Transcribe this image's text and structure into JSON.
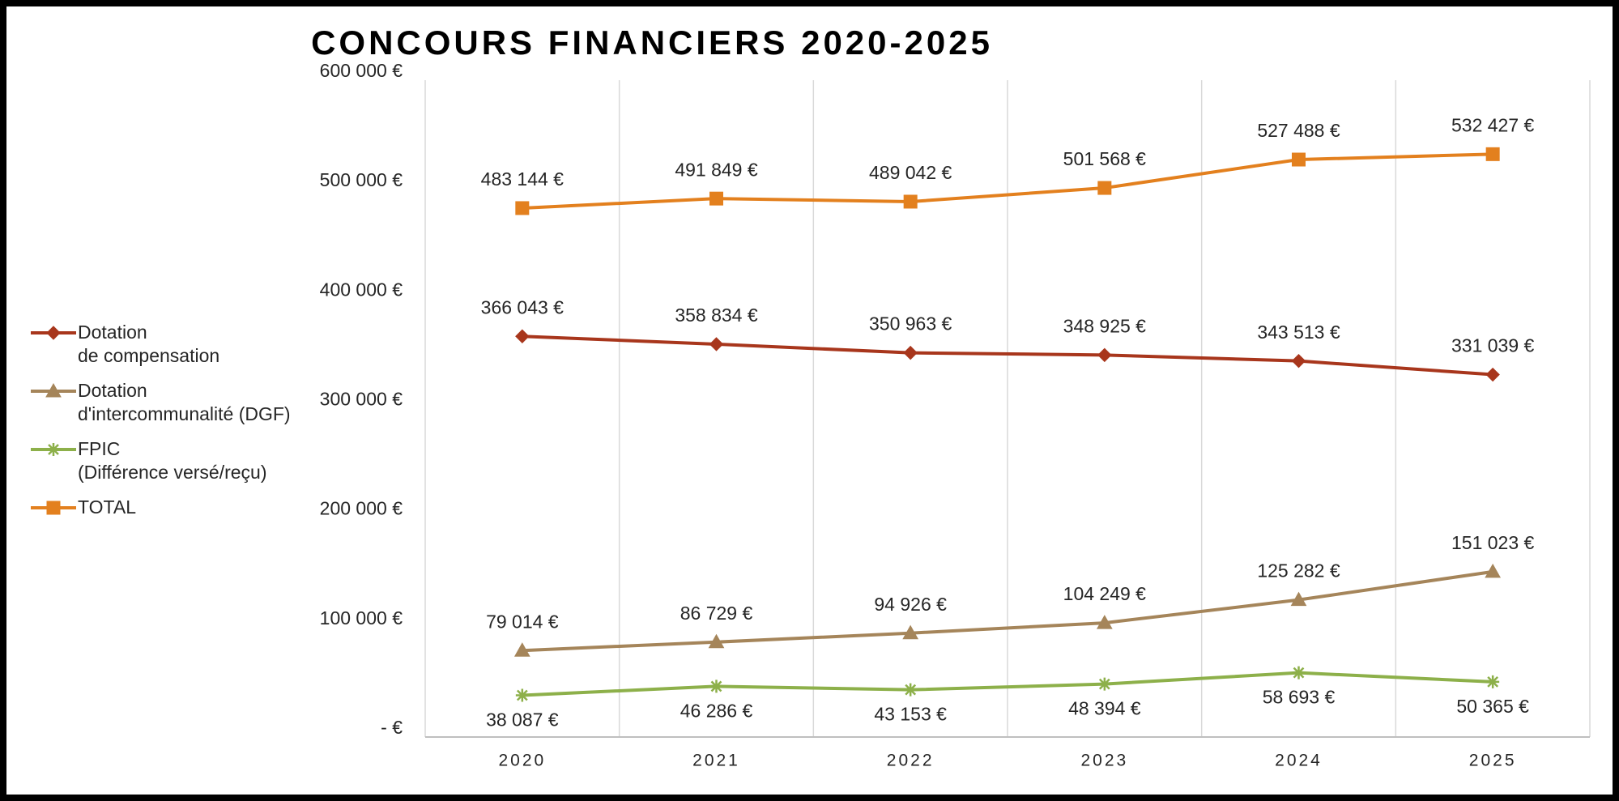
{
  "chart_data": {
    "type": "line",
    "title": "CONCOURS FINANCIERS 2020-2025",
    "categories": [
      "2020",
      "2021",
      "2022",
      "2023",
      "2024",
      "2025"
    ],
    "ylim": [
      0,
      600000
    ],
    "yticks": [
      {
        "value": 0,
        "label": "-   €"
      },
      {
        "value": 100000,
        "label": "100 000 €"
      },
      {
        "value": 200000,
        "label": "200 000 €"
      },
      {
        "value": 300000,
        "label": "300 000 €"
      },
      {
        "value": 400000,
        "label": "400 000 €"
      },
      {
        "value": 500000,
        "label": "500 000 €"
      },
      {
        "value": 600000,
        "label": "600 000 €"
      }
    ],
    "legend": "left",
    "series": [
      {
        "name": "Dotation\nde compensation",
        "color": "#a8361c",
        "marker": "diamond",
        "label_position": "above",
        "values": [
          366043,
          358834,
          350963,
          348925,
          343513,
          331039
        ],
        "value_labels": [
          "366 043 €",
          "358 834 €",
          "350 963 €",
          "348 925 €",
          "343 513 €",
          "331 039 €"
        ]
      },
      {
        "name": "Dotation\nd'intercommunalité (DGF)",
        "color": "#a5855a",
        "marker": "triangle",
        "label_position": "above",
        "values": [
          79014,
          86729,
          94926,
          104249,
          125282,
          151023
        ],
        "value_labels": [
          "79 014 €",
          "86 729 €",
          "94 926 €",
          "104 249 €",
          "125 282 €",
          "151 023 €"
        ]
      },
      {
        "name": "FPIC\n(Différence versé/reçu)",
        "color": "#8db04a",
        "marker": "asterisk",
        "label_position": "below",
        "values": [
          38087,
          46286,
          43153,
          48394,
          58693,
          50365
        ],
        "value_labels": [
          "38 087 €",
          "46 286 €",
          "43 153 €",
          "48 394 €",
          "58 693 €",
          "50 365 €"
        ]
      },
      {
        "name": "TOTAL",
        "color": "#e3801e",
        "marker": "square",
        "label_position": "above",
        "values": [
          483144,
          491849,
          489042,
          501568,
          527488,
          532427
        ],
        "value_labels": [
          "483 144 €",
          "491 849 €",
          "489 042 €",
          "501 568 €",
          "527 488 €",
          "532 427 €"
        ]
      }
    ]
  }
}
